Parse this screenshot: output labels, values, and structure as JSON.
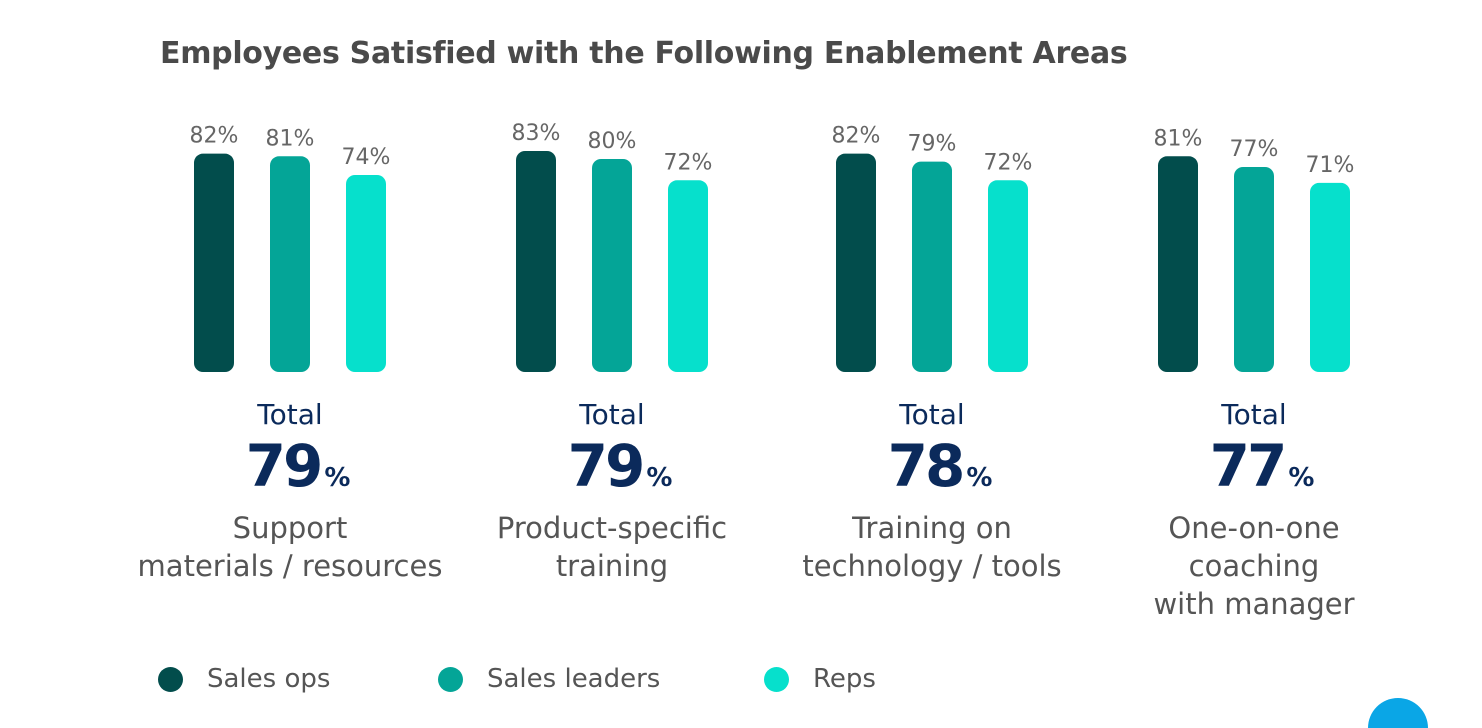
{
  "chart_data": {
    "type": "bar",
    "title": "Employees Satisfied with the Following Enablement Areas",
    "ylim": [
      0,
      100
    ],
    "value_suffix": "%",
    "total_label": "Total",
    "groups": [
      {
        "lines": [
          "Support",
          "materials / resources"
        ],
        "total": "79",
        "values": [
          82,
          81,
          74
        ]
      },
      {
        "lines": [
          "Product-specific",
          "training"
        ],
        "total": "79",
        "values": [
          83,
          80,
          72
        ]
      },
      {
        "lines": [
          "Training on",
          "technology / tools"
        ],
        "total": "78",
        "values": [
          82,
          79,
          72
        ]
      },
      {
        "lines": [
          "One-on-one",
          "coaching",
          "with manager"
        ],
        "total": "77",
        "values": [
          81,
          77,
          71
        ]
      }
    ],
    "series": [
      {
        "name": "Sales ops",
        "color": "#024d4c"
      },
      {
        "name": "Sales leaders",
        "color": "#04a597"
      },
      {
        "name": "Reps",
        "color": "#06e0cc"
      }
    ],
    "legend_position": "bottom-left",
    "grid": false
  }
}
